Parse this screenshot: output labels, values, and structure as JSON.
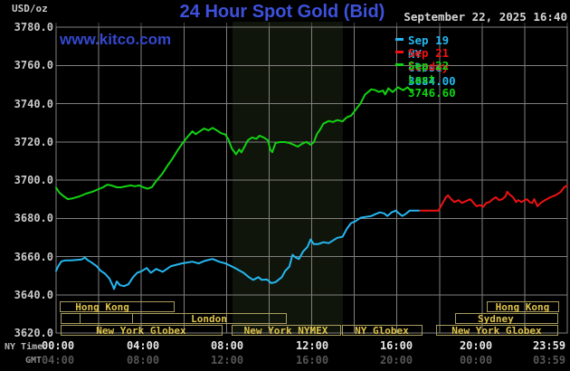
{
  "header": {
    "unit_label": "USD/oz",
    "title": "24 Hour Spot Gold (Bid)",
    "datetime": "September 22, 2025 16:40"
  },
  "watermark": "www.kitco.com",
  "legend": {
    "entries": [
      {
        "label": "Sep 19 NY close 3684.00",
        "color": "#25b7f0"
      },
      {
        "label": "Sep 21 Sunday",
        "color": "#ef1212"
      },
      {
        "label": "Sep 22 Last 3746.60",
        "color": "#12d312"
      }
    ]
  },
  "axis": {
    "ny_label": "NY Time",
    "gmt_label": "GMT",
    "ny_ticks": [
      "00:00",
      "04:00",
      "08:00",
      "12:00",
      "16:00",
      "20:00",
      "23:59"
    ],
    "gmt_ticks": [
      "04:00",
      "08:00",
      "12:00",
      "16:00",
      "20:00",
      "00:00",
      "03:59"
    ]
  },
  "colors": {
    "background": "#000000",
    "grid": "#7f7f7f",
    "top_tick": "#4a4a4a",
    "band": "#10150b",
    "session_border": "#a89c5e",
    "session_text": "#e0c44c"
  },
  "chart_data": {
    "type": "line",
    "title": "24 Hour Spot Gold (Bid)",
    "ylabel": "USD/oz",
    "ylim": [
      3620,
      3780
    ],
    "y_tick_step": 20,
    "xlim_hours": [
      0,
      24
    ],
    "x_gridline_step_hours": 2,
    "grid": true,
    "legend_position": "top-right",
    "nymex_session_band_hours": [
      8.28,
      13.46
    ],
    "series": [
      {
        "name": "Sep 19 NY close 3684.00",
        "color": "#25b7f0",
        "points": [
          [
            0.0,
            3652.5
          ],
          [
            0.1,
            3655
          ],
          [
            0.25,
            3657.5
          ],
          [
            0.45,
            3658
          ],
          [
            0.7,
            3658
          ],
          [
            0.95,
            3658.2
          ],
          [
            1.2,
            3658.5
          ],
          [
            1.35,
            3659.5
          ],
          [
            1.5,
            3658
          ],
          [
            1.65,
            3657
          ],
          [
            1.9,
            3655
          ],
          [
            2.1,
            3652.5
          ],
          [
            2.3,
            3651
          ],
          [
            2.5,
            3648.5
          ],
          [
            2.65,
            3645
          ],
          [
            2.72,
            3643
          ],
          [
            2.85,
            3647
          ],
          [
            3.0,
            3645
          ],
          [
            3.2,
            3644.5
          ],
          [
            3.4,
            3645.5
          ],
          [
            3.6,
            3649
          ],
          [
            3.8,
            3651.5
          ],
          [
            4.0,
            3652.3
          ],
          [
            4.25,
            3654
          ],
          [
            4.45,
            3651.5
          ],
          [
            4.7,
            3653.5
          ],
          [
            5.0,
            3652
          ],
          [
            5.4,
            3655
          ],
          [
            5.9,
            3656.4
          ],
          [
            6.4,
            3657.3
          ],
          [
            6.7,
            3656.4
          ],
          [
            7.0,
            3657.8
          ],
          [
            7.35,
            3658.7
          ],
          [
            7.65,
            3657.3
          ],
          [
            7.95,
            3656.4
          ],
          [
            8.4,
            3654
          ],
          [
            8.8,
            3651.5
          ],
          [
            9.05,
            3649.2
          ],
          [
            9.25,
            3647.8
          ],
          [
            9.5,
            3649.2
          ],
          [
            9.65,
            3647.8
          ],
          [
            9.9,
            3648
          ],
          [
            10.1,
            3646.1
          ],
          [
            10.3,
            3646.6
          ],
          [
            10.6,
            3649.2
          ],
          [
            10.75,
            3652.4
          ],
          [
            10.95,
            3654.7
          ],
          [
            11.1,
            3660.9
          ],
          [
            11.25,
            3659.5
          ],
          [
            11.4,
            3658.7
          ],
          [
            11.6,
            3662.7
          ],
          [
            11.8,
            3665
          ],
          [
            11.95,
            3668.9
          ],
          [
            12.1,
            3666.5
          ],
          [
            12.3,
            3666.5
          ],
          [
            12.55,
            3667.5
          ],
          [
            12.8,
            3667
          ],
          [
            13.2,
            3669.8
          ],
          [
            13.45,
            3670.3
          ],
          [
            13.65,
            3674.5
          ],
          [
            13.85,
            3677.5
          ],
          [
            14.05,
            3678.4
          ],
          [
            14.3,
            3680.3
          ],
          [
            14.5,
            3680.7
          ],
          [
            14.8,
            3681.2
          ],
          [
            15.0,
            3682.2
          ],
          [
            15.2,
            3683.1
          ],
          [
            15.4,
            3682.6
          ],
          [
            15.55,
            3681.2
          ],
          [
            15.75,
            3683.1
          ],
          [
            15.95,
            3684
          ],
          [
            16.05,
            3683
          ],
          [
            16.25,
            3681.2
          ],
          [
            16.4,
            3682.2
          ],
          [
            16.6,
            3684
          ],
          [
            16.8,
            3684
          ],
          [
            17.05,
            3684
          ]
        ]
      },
      {
        "name": "Sep 21 Sunday",
        "color": "#ef1212",
        "points": [
          [
            17.1,
            3684
          ],
          [
            17.95,
            3684
          ],
          [
            18.1,
            3687
          ],
          [
            18.3,
            3691
          ],
          [
            18.4,
            3692
          ],
          [
            18.55,
            3690
          ],
          [
            18.7,
            3688.5
          ],
          [
            18.9,
            3689.5
          ],
          [
            19.05,
            3688
          ],
          [
            19.25,
            3689
          ],
          [
            19.45,
            3690
          ],
          [
            19.6,
            3688
          ],
          [
            19.75,
            3686.3
          ],
          [
            19.9,
            3687
          ],
          [
            20.05,
            3686
          ],
          [
            20.2,
            3688
          ],
          [
            20.35,
            3688.5
          ],
          [
            20.5,
            3690
          ],
          [
            20.65,
            3691
          ],
          [
            20.8,
            3689.5
          ],
          [
            20.95,
            3690
          ],
          [
            21.1,
            3691.5
          ],
          [
            21.18,
            3693.9
          ],
          [
            21.3,
            3692.4
          ],
          [
            21.45,
            3691
          ],
          [
            21.6,
            3688.5
          ],
          [
            21.7,
            3689.5
          ],
          [
            21.85,
            3688.5
          ],
          [
            22.0,
            3689.5
          ],
          [
            22.1,
            3690
          ],
          [
            22.25,
            3688.3
          ],
          [
            22.35,
            3688
          ],
          [
            22.45,
            3690
          ],
          [
            22.6,
            3686.3
          ],
          [
            22.75,
            3688
          ],
          [
            22.95,
            3689.5
          ],
          [
            23.2,
            3691
          ],
          [
            23.35,
            3691.6
          ],
          [
            23.5,
            3692.4
          ],
          [
            23.7,
            3693.9
          ],
          [
            23.85,
            3696.2
          ],
          [
            23.98,
            3697
          ]
        ]
      },
      {
        "name": "Sep 22 Last 3746.60",
        "color": "#12d312",
        "points": [
          [
            0.0,
            3696
          ],
          [
            0.15,
            3693.5
          ],
          [
            0.3,
            3692
          ],
          [
            0.55,
            3690
          ],
          [
            0.8,
            3690.5
          ],
          [
            1.1,
            3691.5
          ],
          [
            1.4,
            3692.9
          ],
          [
            1.7,
            3693.9
          ],
          [
            2.2,
            3696.2
          ],
          [
            2.4,
            3697.6
          ],
          [
            2.6,
            3697.2
          ],
          [
            2.85,
            3696.2
          ],
          [
            3.05,
            3696.2
          ],
          [
            3.25,
            3696.7
          ],
          [
            3.5,
            3697.2
          ],
          [
            3.7,
            3696.8
          ],
          [
            3.9,
            3697.2
          ],
          [
            4.1,
            3696.2
          ],
          [
            4.3,
            3695.5
          ],
          [
            4.5,
            3696.3
          ],
          [
            4.7,
            3699.5
          ],
          [
            5.0,
            3703.5
          ],
          [
            5.2,
            3707
          ],
          [
            5.45,
            3711
          ],
          [
            5.7,
            3715.5
          ],
          [
            5.95,
            3719.5
          ],
          [
            6.2,
            3723
          ],
          [
            6.4,
            3725.5
          ],
          [
            6.55,
            3724
          ],
          [
            6.75,
            3725.5
          ],
          [
            6.95,
            3727
          ],
          [
            7.15,
            3726
          ],
          [
            7.35,
            3727.3
          ],
          [
            7.55,
            3726
          ],
          [
            7.75,
            3724.5
          ],
          [
            7.95,
            3723.8
          ],
          [
            8.1,
            3721
          ],
          [
            8.25,
            3716.5
          ],
          [
            8.45,
            3713.5
          ],
          [
            8.6,
            3716
          ],
          [
            8.7,
            3714.5
          ],
          [
            8.85,
            3717.5
          ],
          [
            9.0,
            3720.8
          ],
          [
            9.2,
            3722.3
          ],
          [
            9.4,
            3721.6
          ],
          [
            9.55,
            3723.2
          ],
          [
            9.75,
            3722.3
          ],
          [
            9.95,
            3720.8
          ],
          [
            10.05,
            3716
          ],
          [
            10.15,
            3714.6
          ],
          [
            10.3,
            3719.4
          ],
          [
            10.5,
            3719.9
          ],
          [
            10.75,
            3719.9
          ],
          [
            10.95,
            3719.4
          ],
          [
            11.15,
            3718.5
          ],
          [
            11.35,
            3717.5
          ],
          [
            11.55,
            3719
          ],
          [
            11.75,
            3720
          ],
          [
            11.95,
            3718.5
          ],
          [
            12.1,
            3719.8
          ],
          [
            12.25,
            3724.2
          ],
          [
            12.4,
            3726.5
          ],
          [
            12.55,
            3729.5
          ],
          [
            12.8,
            3730.9
          ],
          [
            13.0,
            3730.4
          ],
          [
            13.2,
            3731.4
          ],
          [
            13.45,
            3730.7
          ],
          [
            13.65,
            3732.8
          ],
          [
            13.85,
            3733.7
          ],
          [
            14.05,
            3736.6
          ],
          [
            14.3,
            3740.2
          ],
          [
            14.5,
            3744.7
          ],
          [
            14.8,
            3747.5
          ],
          [
            15.0,
            3747
          ],
          [
            15.15,
            3746.1
          ],
          [
            15.35,
            3746.8
          ],
          [
            15.45,
            3744.8
          ],
          [
            15.6,
            3748
          ],
          [
            15.8,
            3746
          ],
          [
            16.05,
            3748.5
          ],
          [
            16.3,
            3747
          ],
          [
            16.5,
            3748.5
          ],
          [
            16.67,
            3746.6
          ]
        ]
      }
    ],
    "sessions": [
      {
        "row": 0,
        "label": "Hong Kong",
        "start_h": 0.17,
        "end_h": 5.52,
        "label_center_h": 2.17
      },
      {
        "row": 0,
        "label": "Hong Kong",
        "start_h": 20.22,
        "end_h": 23.57
      },
      {
        "row": 1,
        "label": "",
        "start_h": 0.21,
        "end_h": 1.1
      },
      {
        "row": 1,
        "label": "",
        "start_h": 1.1,
        "end_h": 3.57
      },
      {
        "row": 1,
        "label": "London",
        "start_h": 3.57,
        "end_h": 10.79
      },
      {
        "row": 1,
        "label": "Sydney",
        "start_h": 18.73,
        "end_h": 23.53,
        "label_center_h": 20.64
      },
      {
        "row": 2,
        "label": "New York Globex",
        "start_h": 0.21,
        "end_h": 7.77
      },
      {
        "row": 2,
        "label": "New York NYMEX",
        "start_h": 8.24,
        "end_h": 13.34
      },
      {
        "row": 2,
        "label": "NY Globex",
        "start_h": 13.42,
        "end_h": 17.16
      },
      {
        "row": 2,
        "label": "New York Globex",
        "start_h": 17.84,
        "end_h": 23.53
      }
    ]
  }
}
